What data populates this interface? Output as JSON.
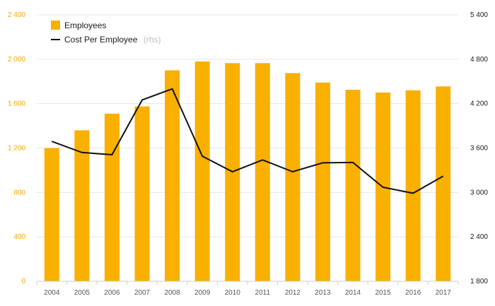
{
  "colors": {
    "bar": "#F9B000",
    "line": "#111111",
    "left_axis_text": "#F2A900",
    "grid": "#e6e6e6",
    "axis": "#cfcfcf"
  },
  "legend": {
    "position": "top-left",
    "items": [
      {
        "label": "Employees",
        "note": ""
      },
      {
        "label": "Cost Per Employee",
        "note": "(rhs)"
      }
    ]
  },
  "chart_data": {
    "type": "bar",
    "categories": [
      "2004",
      "2005",
      "2006",
      "2007",
      "2008",
      "2009",
      "2010",
      "2011",
      "2012",
      "2013",
      "2014",
      "2015",
      "2016",
      "2017"
    ],
    "series": [
      {
        "name": "Employees",
        "type": "bar",
        "axis": "left",
        "values": [
          1200,
          1360,
          1510,
          1575,
          1900,
          1980,
          1965,
          1965,
          1875,
          1790,
          1725,
          1700,
          1720,
          1755
        ]
      },
      {
        "name": "Cost Per Employee",
        "type": "line",
        "axis": "right",
        "values": [
          3690,
          3540,
          3510,
          4250,
          4400,
          3490,
          3280,
          3440,
          3280,
          3400,
          3405,
          3070,
          2990,
          3220
        ]
      }
    ],
    "y_left": {
      "min": 0,
      "max": 2400,
      "ticks": [
        "0",
        "400",
        "800",
        "1 200",
        "1 600",
        "2 000",
        "2 400"
      ]
    },
    "y_right": {
      "min": 1800,
      "max": 5400,
      "ticks": [
        "1 800",
        "2 400",
        "3 000",
        "3 600",
        "4 200",
        "4 800",
        "5 400"
      ]
    },
    "grid": true
  }
}
